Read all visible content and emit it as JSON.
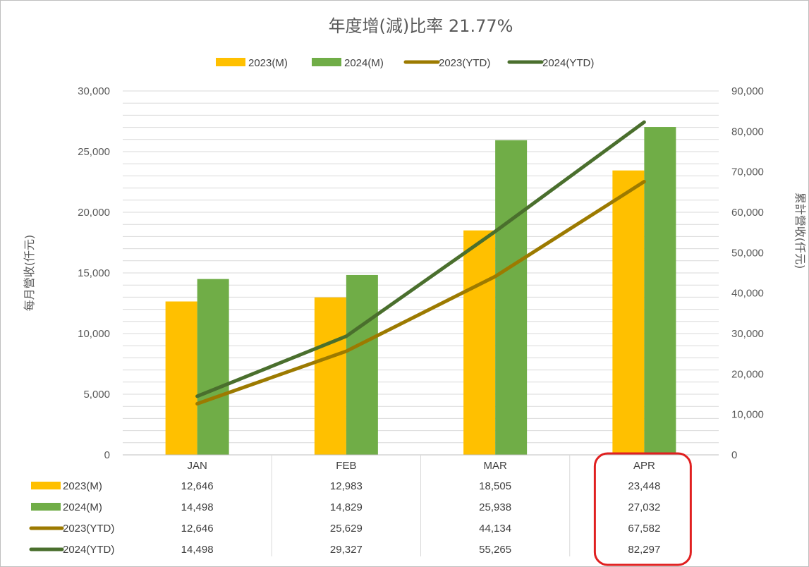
{
  "chart_data": {
    "type": "bar",
    "title": "年度增(減)比率 21.77%",
    "categories": [
      "JAN",
      "FEB",
      "MAR",
      "APR"
    ],
    "series": [
      {
        "name": "2023(M)",
        "type": "bar",
        "axis": "left",
        "values": [
          12646,
          12983,
          18505,
          23448
        ],
        "value_labels": [
          "12,646",
          "12,983",
          "18,505",
          "23,448"
        ]
      },
      {
        "name": "2024(M)",
        "type": "bar",
        "axis": "left",
        "values": [
          14498,
          14829,
          25938,
          27032
        ],
        "value_labels": [
          "14,498",
          "14,829",
          "25,938",
          "27,032"
        ]
      },
      {
        "name": "2023(YTD)",
        "type": "line",
        "axis": "right",
        "values": [
          12646,
          25629,
          44134,
          67582
        ],
        "value_labels": [
          "12,646",
          "25,629",
          "44,134",
          "67,582"
        ]
      },
      {
        "name": "2024(YTD)",
        "type": "line",
        "axis": "right",
        "values": [
          14498,
          29327,
          55265,
          82297
        ],
        "value_labels": [
          "14,498",
          "29,327",
          "55,265",
          "82,297"
        ]
      }
    ],
    "ylabel": "每月營收(仟元)",
    "y2label": "累計營收(仟元)",
    "ylim": [
      0,
      30000
    ],
    "y2lim": [
      0,
      90000
    ],
    "yticks": [
      "0",
      "5,000",
      "10,000",
      "15,000",
      "20,000",
      "25,000",
      "30,000"
    ],
    "y2ticks": [
      "0",
      "10,000",
      "20,000",
      "30,000",
      "40,000",
      "50,000",
      "60,000",
      "70,000",
      "80,000",
      "90,000"
    ],
    "grid": true,
    "legend_position": "top",
    "data_table": true,
    "highlight_category": "APR"
  },
  "colors": {
    "2023(M)": "#ffc000",
    "2024(M)": "#70ad47",
    "2023(YTD)": "#9c7a00",
    "2024(YTD)": "#4a6f2d",
    "highlight": "#e02020",
    "grid": "#d9d9d9",
    "table_lines": "#d9d9d9"
  }
}
